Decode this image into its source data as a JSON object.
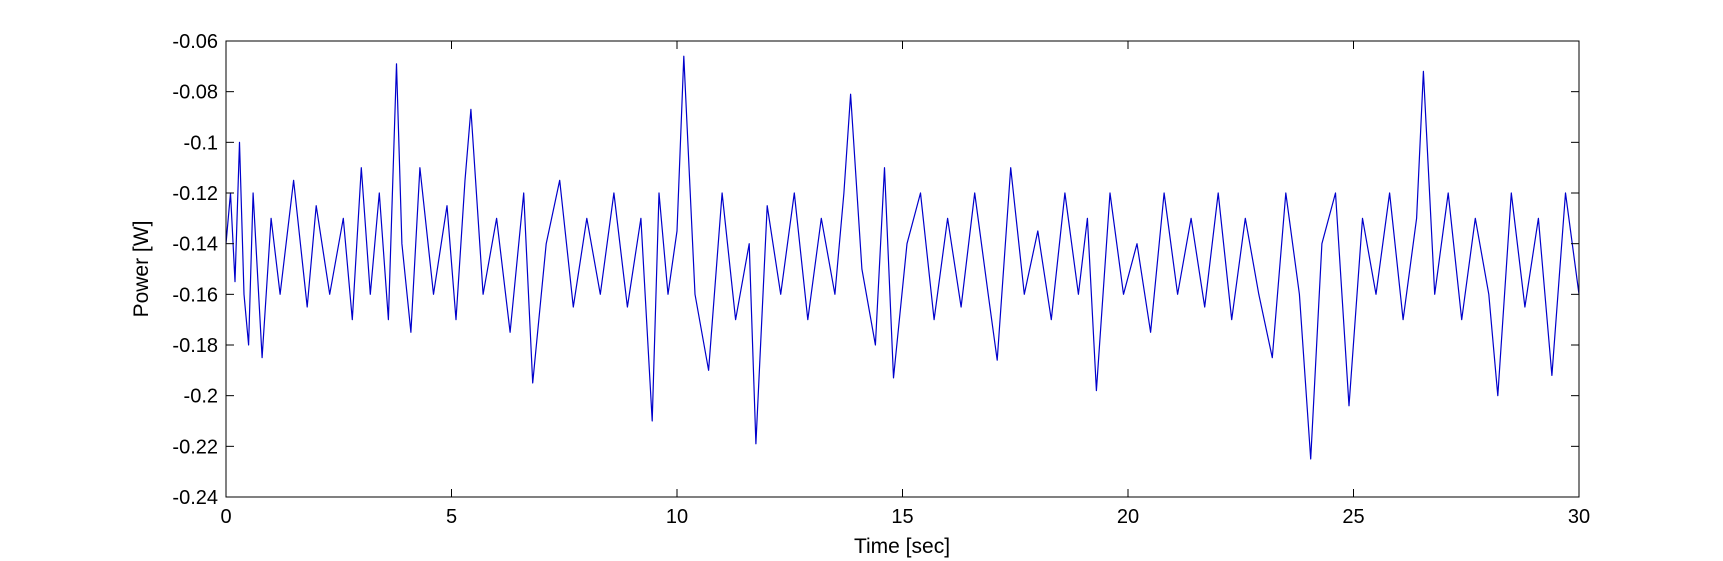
{
  "chart_data": {
    "type": "line",
    "title": "",
    "xlabel": "Time [sec]",
    "ylabel": "Power [W]",
    "xlim": [
      0,
      30
    ],
    "ylim": [
      -0.24,
      -0.06
    ],
    "x_ticks": [
      0,
      5,
      10,
      15,
      20,
      25,
      30
    ],
    "x_tick_labels": [
      "0",
      "5",
      "10",
      "15",
      "20",
      "25",
      "30"
    ],
    "y_ticks": [
      -0.06,
      -0.08,
      -0.1,
      -0.12,
      -0.14,
      -0.16,
      -0.18,
      -0.2,
      -0.22,
      -0.24
    ],
    "y_tick_labels": [
      "-0.06",
      "-0.08",
      "-0.1",
      "-0.12",
      "-0.14",
      "-0.16",
      "-0.18",
      "-0.2",
      "-0.22",
      "-0.24"
    ],
    "grid": false,
    "legend": "none",
    "series": [
      {
        "color": "#0000cc",
        "x": [
          0,
          0.1,
          0.2,
          0.3,
          0.4,
          0.5,
          0.6,
          0.8,
          1.0,
          1.2,
          1.5,
          1.8,
          2.0,
          2.3,
          2.6,
          2.8,
          3.0,
          3.2,
          3.4,
          3.6,
          3.78,
          3.9,
          4.1,
          4.3,
          4.6,
          4.9,
          5.1,
          5.3,
          5.43,
          5.7,
          6.0,
          6.3,
          6.6,
          6.8,
          7.1,
          7.4,
          7.7,
          8.0,
          8.3,
          8.6,
          8.9,
          9.2,
          9.45,
          9.6,
          9.8,
          10.0,
          10.15,
          10.4,
          10.7,
          11.0,
          11.3,
          11.6,
          11.75,
          12.0,
          12.3,
          12.6,
          12.9,
          13.2,
          13.5,
          13.7,
          13.85,
          14.1,
          14.4,
          14.6,
          14.8,
          15.1,
          15.4,
          15.7,
          16.0,
          16.3,
          16.6,
          16.9,
          17.1,
          17.4,
          17.7,
          18.0,
          18.3,
          18.6,
          18.9,
          19.1,
          19.3,
          19.6,
          19.9,
          20.2,
          20.5,
          20.8,
          21.1,
          21.4,
          21.7,
          22.0,
          22.3,
          22.6,
          22.9,
          23.2,
          23.5,
          23.8,
          24.05,
          24.3,
          24.6,
          24.9,
          25.2,
          25.5,
          25.8,
          26.1,
          26.4,
          26.55,
          26.8,
          27.1,
          27.4,
          27.7,
          28.0,
          28.2,
          28.5,
          28.8,
          29.1,
          29.4,
          29.7,
          30.0
        ],
        "values": [
          -0.14,
          -0.12,
          -0.155,
          -0.1,
          -0.16,
          -0.18,
          -0.12,
          -0.185,
          -0.13,
          -0.16,
          -0.115,
          -0.165,
          -0.125,
          -0.16,
          -0.13,
          -0.17,
          -0.11,
          -0.16,
          -0.12,
          -0.17,
          -0.069,
          -0.14,
          -0.175,
          -0.11,
          -0.16,
          -0.125,
          -0.17,
          -0.115,
          -0.087,
          -0.16,
          -0.13,
          -0.175,
          -0.12,
          -0.195,
          -0.14,
          -0.115,
          -0.165,
          -0.13,
          -0.16,
          -0.12,
          -0.165,
          -0.13,
          -0.21,
          -0.12,
          -0.16,
          -0.135,
          -0.066,
          -0.16,
          -0.19,
          -0.12,
          -0.17,
          -0.14,
          -0.219,
          -0.125,
          -0.16,
          -0.12,
          -0.17,
          -0.13,
          -0.16,
          -0.12,
          -0.081,
          -0.15,
          -0.18,
          -0.11,
          -0.193,
          -0.14,
          -0.12,
          -0.17,
          -0.13,
          -0.165,
          -0.12,
          -0.16,
          -0.186,
          -0.11,
          -0.16,
          -0.135,
          -0.17,
          -0.12,
          -0.16,
          -0.13,
          -0.198,
          -0.12,
          -0.16,
          -0.14,
          -0.175,
          -0.12,
          -0.16,
          -0.13,
          -0.165,
          -0.12,
          -0.17,
          -0.13,
          -0.16,
          -0.185,
          -0.12,
          -0.16,
          -0.225,
          -0.14,
          -0.12,
          -0.204,
          -0.13,
          -0.16,
          -0.12,
          -0.17,
          -0.13,
          -0.072,
          -0.16,
          -0.12,
          -0.17,
          -0.13,
          -0.16,
          -0.2,
          -0.12,
          -0.165,
          -0.13,
          -0.192,
          -0.12,
          -0.16
        ]
      }
    ]
  }
}
